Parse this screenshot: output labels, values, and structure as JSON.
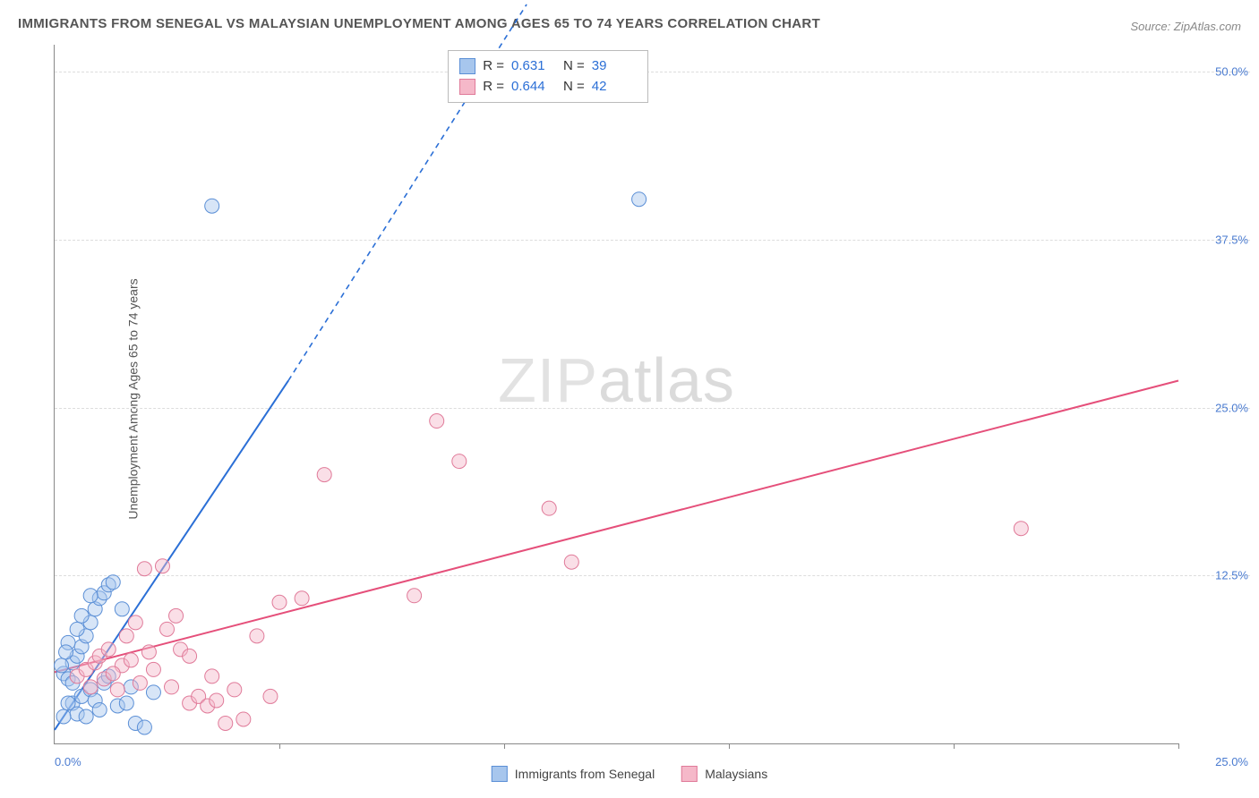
{
  "title": "IMMIGRANTS FROM SENEGAL VS MALAYSIAN UNEMPLOYMENT AMONG AGES 65 TO 74 YEARS CORRELATION CHART",
  "source": "Source: ZipAtlas.com",
  "y_axis_label": "Unemployment Among Ages 65 to 74 years",
  "watermark_part1": "ZIP",
  "watermark_part2": "atlas",
  "chart": {
    "type": "scatter",
    "background_color": "#ffffff",
    "grid_color": "#dddddd",
    "axis_color": "#888888",
    "xlim": [
      0,
      25
    ],
    "ylim": [
      0,
      52
    ],
    "x_tick_start": "0.0%",
    "x_tick_end": "25.0%",
    "x_minor_ticks": [
      5,
      10,
      15,
      20,
      25
    ],
    "y_ticks": [
      {
        "v": 12.5,
        "label": "12.5%"
      },
      {
        "v": 25.0,
        "label": "25.0%"
      },
      {
        "v": 37.5,
        "label": "37.5%"
      },
      {
        "v": 50.0,
        "label": "50.0%"
      }
    ],
    "marker_radius": 8,
    "marker_opacity": 0.45,
    "line_width": 2,
    "series": [
      {
        "id": "senegal",
        "label": "Immigrants from Senegal",
        "fill": "#a7c6ed",
        "stroke": "#5b8fd6",
        "line_color": "#2b6fd6",
        "R": "0.631",
        "N": "39",
        "trend": {
          "x1": 0,
          "y1": 1.0,
          "x2": 5.2,
          "y2": 27.0,
          "dash_x2": 10.5,
          "dash_y2": 55.0
        },
        "points": [
          [
            0.2,
            5.2
          ],
          [
            0.3,
            4.8
          ],
          [
            0.4,
            6.0
          ],
          [
            0.5,
            6.5
          ],
          [
            0.6,
            7.2
          ],
          [
            0.7,
            8.0
          ],
          [
            0.8,
            9.0
          ],
          [
            0.9,
            10.0
          ],
          [
            1.0,
            10.8
          ],
          [
            1.1,
            11.2
          ],
          [
            1.2,
            11.8
          ],
          [
            1.3,
            12.0
          ],
          [
            0.4,
            3.0
          ],
          [
            0.5,
            2.2
          ],
          [
            0.6,
            3.5
          ],
          [
            0.7,
            2.0
          ],
          [
            0.8,
            4.0
          ],
          [
            0.9,
            3.2
          ],
          [
            1.0,
            2.5
          ],
          [
            1.1,
            4.5
          ],
          [
            1.2,
            5.0
          ],
          [
            1.4,
            2.8
          ],
          [
            1.5,
            10.0
          ],
          [
            1.6,
            3.0
          ],
          [
            1.7,
            4.2
          ],
          [
            1.8,
            1.5
          ],
          [
            2.0,
            1.2
          ],
          [
            2.2,
            3.8
          ],
          [
            0.3,
            7.5
          ],
          [
            0.5,
            8.5
          ],
          [
            0.6,
            9.5
          ],
          [
            0.8,
            11.0
          ],
          [
            0.2,
            2.0
          ],
          [
            0.3,
            3.0
          ],
          [
            0.4,
            4.5
          ],
          [
            0.15,
            5.8
          ],
          [
            0.25,
            6.8
          ],
          [
            13.0,
            40.5
          ],
          [
            3.5,
            40.0
          ]
        ]
      },
      {
        "id": "malaysian",
        "label": "Malaysians",
        "fill": "#f5b8c9",
        "stroke": "#e07a99",
        "line_color": "#e54f7a",
        "R": "0.644",
        "N": "42",
        "trend": {
          "x1": 0,
          "y1": 5.3,
          "x2": 25,
          "y2": 27.0
        },
        "points": [
          [
            0.5,
            5.0
          ],
          [
            0.7,
            5.5
          ],
          [
            0.9,
            6.0
          ],
          [
            1.0,
            6.5
          ],
          [
            1.2,
            7.0
          ],
          [
            1.4,
            4.0
          ],
          [
            1.6,
            8.0
          ],
          [
            1.8,
            9.0
          ],
          [
            2.0,
            13.0
          ],
          [
            2.2,
            5.5
          ],
          [
            2.4,
            13.2
          ],
          [
            2.5,
            8.5
          ],
          [
            2.7,
            9.5
          ],
          [
            2.8,
            7.0
          ],
          [
            3.0,
            3.0
          ],
          [
            3.2,
            3.5
          ],
          [
            3.4,
            2.8
          ],
          [
            3.6,
            3.2
          ],
          [
            3.8,
            1.5
          ],
          [
            4.0,
            4.0
          ],
          [
            4.2,
            1.8
          ],
          [
            4.5,
            8.0
          ],
          [
            5.0,
            10.5
          ],
          [
            5.5,
            10.8
          ],
          [
            6.0,
            20.0
          ],
          [
            4.8,
            3.5
          ],
          [
            1.5,
            5.8
          ],
          [
            1.7,
            6.2
          ],
          [
            1.9,
            4.5
          ],
          [
            2.1,
            6.8
          ],
          [
            0.8,
            4.2
          ],
          [
            1.1,
            4.8
          ],
          [
            1.3,
            5.2
          ],
          [
            8.0,
            11.0
          ],
          [
            8.5,
            24.0
          ],
          [
            9.0,
            21.0
          ],
          [
            11.5,
            13.5
          ],
          [
            11.0,
            17.5
          ],
          [
            21.5,
            16.0
          ],
          [
            3.0,
            6.5
          ],
          [
            3.5,
            5.0
          ],
          [
            2.6,
            4.2
          ]
        ]
      }
    ]
  },
  "legend_labels": {
    "R": "R =",
    "N": "N ="
  }
}
